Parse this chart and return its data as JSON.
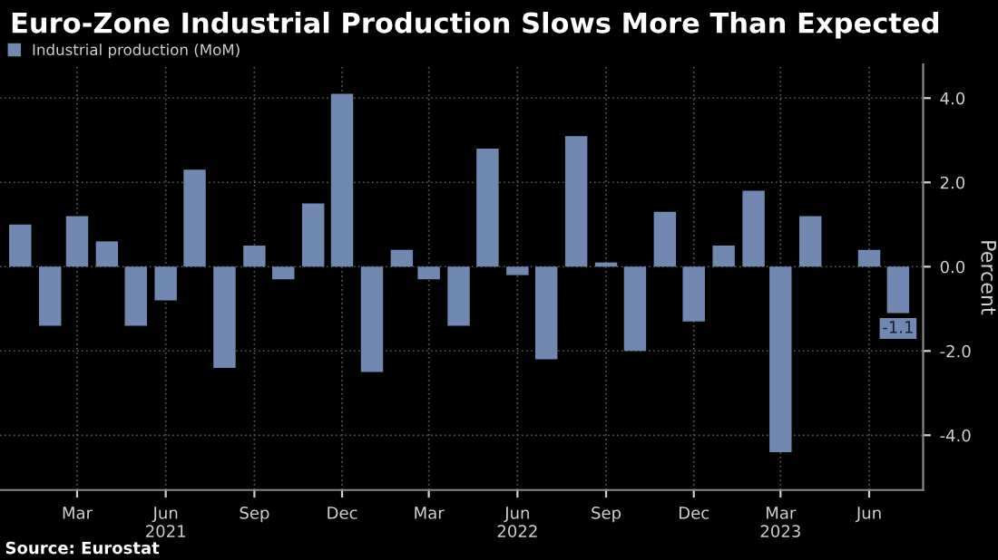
{
  "chart_data": {
    "type": "bar",
    "title": "Euro-Zone Industrial Production Slows More Than Expected",
    "ylabel": "Percent",
    "x": [
      "2021-01-15",
      "2021-02-15",
      "2021-03-15",
      "2021-04-15",
      "2021-05-15",
      "2021-06-15",
      "2021-07-15",
      "2021-08-15",
      "2021-09-15",
      "2021-10-15",
      "2021-11-15",
      "2021-12-15",
      "2022-01-15",
      "2022-02-15",
      "2022-03-15",
      "2022-04-15",
      "2022-05-15",
      "2022-06-15",
      "2022-07-15",
      "2022-08-15",
      "2022-09-15",
      "2022-10-15",
      "2022-11-15",
      "2022-12-15",
      "2023-01-15",
      "2023-02-15",
      "2023-03-15",
      "2023-04-15",
      "2023-05-15",
      "2023-06-15",
      "2023-07-15"
    ],
    "series": [
      {
        "name": "Industrial production (MoM)",
        "color": "#7189b1",
        "values": [
          1.0,
          -1.4,
          1.2,
          0.6,
          -1.4,
          -0.8,
          2.3,
          -2.4,
          0.5,
          -0.3,
          1.5,
          4.1,
          -2.5,
          0.4,
          -0.3,
          -1.4,
          2.8,
          -0.2,
          -2.2,
          3.1,
          0.1,
          -2.0,
          1.3,
          -1.3,
          0.5,
          1.8,
          -4.4,
          1.2,
          0.0,
          0.4,
          -1.1
        ],
        "value_labels": [
          null,
          null,
          null,
          null,
          null,
          null,
          null,
          null,
          null,
          null,
          null,
          null,
          null,
          null,
          null,
          null,
          null,
          null,
          null,
          null,
          null,
          null,
          null,
          null,
          null,
          null,
          null,
          null,
          null,
          null,
          "-1.1"
        ]
      }
    ],
    "xlim": [
      "2020-12-25",
      "2023-08-10"
    ],
    "xticks": [
      {
        "value": "2021-03-15",
        "label": "Mar"
      },
      {
        "value": "2021-06-15",
        "label": "Jun\n2021"
      },
      {
        "value": "2021-09-15",
        "label": "Sep"
      },
      {
        "value": "2021-12-15",
        "label": "Dec"
      },
      {
        "value": "2022-03-15",
        "label": "Mar"
      },
      {
        "value": "2022-06-15",
        "label": "Jun\n2022"
      },
      {
        "value": "2022-09-15",
        "label": "Sep"
      },
      {
        "value": "2022-12-15",
        "label": "Dec"
      },
      {
        "value": "2023-03-15",
        "label": "Mar\n2023"
      },
      {
        "value": "2023-06-15",
        "label": "Jun"
      }
    ],
    "ylim": [
      -5.3,
      4.8
    ],
    "yticks": [
      {
        "value": -4,
        "label": "-4.0"
      },
      {
        "value": -2,
        "label": "-2.0"
      },
      {
        "value": 0,
        "label": "0.0"
      },
      {
        "value": 2,
        "label": "2.0"
      },
      {
        "value": 4,
        "label": "4.0"
      }
    ],
    "grid": true,
    "legend": "top left",
    "annotations": [
      "Source: Eurostat"
    ]
  }
}
